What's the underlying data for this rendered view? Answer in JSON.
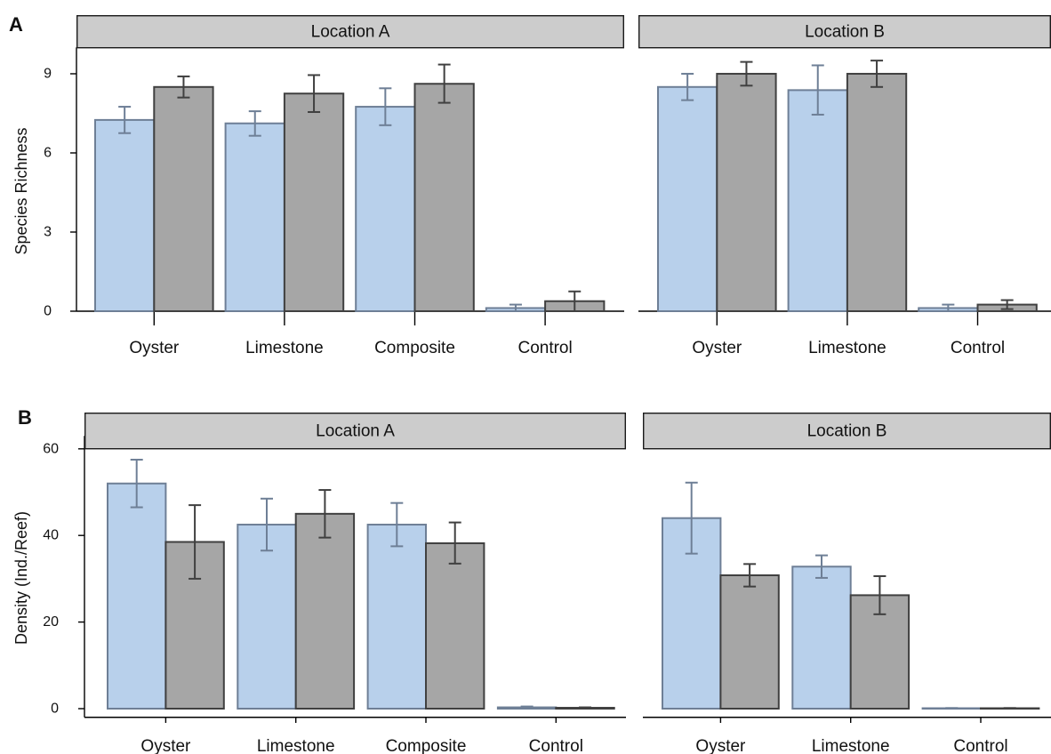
{
  "colors": {
    "bar_light_fill": "#b8d0eb",
    "bar_light_stroke": "#6e7f96",
    "bar_dark_fill": "#a6a6a6",
    "bar_dark_stroke": "#404040",
    "strip_fill": "#cccccc",
    "axis": "#000000"
  },
  "chart_data": [
    {
      "type": "bar",
      "panel_label": "A",
      "ylabel": "Species Richness",
      "ylim": [
        0,
        10
      ],
      "yticks": [
        0,
        3,
        6,
        9
      ],
      "grid": false,
      "facets": [
        {
          "strip_label": "Location A",
          "categories": [
            "Oyster",
            "Limestone",
            "Composite",
            "Control"
          ],
          "series": [
            {
              "values": [
                7.25,
                7.12,
                7.75,
                0.12
              ],
              "err_low": [
                6.75,
                6.65,
                7.05,
                0.0
              ],
              "err_high": [
                7.75,
                7.58,
                8.45,
                0.25
              ]
            },
            {
              "values": [
                8.5,
                8.25,
                8.62,
                0.38
              ],
              "err_low": [
                8.1,
                7.55,
                7.9,
                0.0
              ],
              "err_high": [
                8.9,
                8.95,
                9.35,
                0.75
              ]
            }
          ]
        },
        {
          "strip_label": "Location B",
          "categories": [
            "Oyster",
            "Limestone",
            "Control"
          ],
          "series": [
            {
              "values": [
                8.5,
                8.38,
                0.12
              ],
              "err_low": [
                8.0,
                7.45,
                0.0
              ],
              "err_high": [
                9.0,
                9.32,
                0.25
              ]
            },
            {
              "values": [
                9.0,
                9.0,
                0.25
              ],
              "err_low": [
                8.55,
                8.5,
                0.08
              ],
              "err_high": [
                9.45,
                9.5,
                0.42
              ]
            }
          ]
        }
      ]
    },
    {
      "type": "bar",
      "panel_label": "B",
      "ylabel": "Density (Ind./Reef)",
      "ylim": [
        -2,
        63
      ],
      "yticks": [
        0,
        20,
        40,
        60
      ],
      "grid": false,
      "facets": [
        {
          "strip_label": "Location A",
          "categories": [
            "Oyster",
            "Limestone",
            "Composite",
            "Control"
          ],
          "series": [
            {
              "values": [
                52.0,
                42.5,
                42.5,
                0.3
              ],
              "err_low": [
                46.5,
                36.5,
                37.5,
                0.1
              ],
              "err_high": [
                57.5,
                48.5,
                47.5,
                0.5
              ]
            },
            {
              "values": [
                38.5,
                45.0,
                38.2,
                0.2
              ],
              "err_low": [
                30.0,
                39.5,
                33.5,
                0.1
              ],
              "err_high": [
                47.0,
                50.5,
                43.0,
                0.3
              ]
            }
          ]
        },
        {
          "strip_label": "Location B",
          "categories": [
            "Oyster",
            "Limestone",
            "Control"
          ],
          "series": [
            {
              "values": [
                44.0,
                32.8,
                0.1
              ],
              "err_low": [
                35.8,
                30.2,
                0.05
              ],
              "err_high": [
                52.2,
                35.4,
                0.15
              ]
            },
            {
              "values": [
                30.8,
                26.2,
                0.1
              ],
              "err_low": [
                28.2,
                21.8,
                0.05
              ],
              "err_high": [
                33.4,
                30.6,
                0.15
              ]
            }
          ]
        }
      ]
    }
  ]
}
